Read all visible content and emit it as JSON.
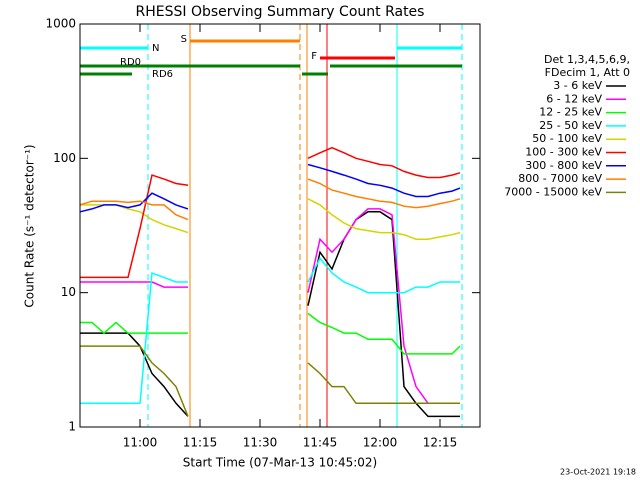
{
  "chart_data": {
    "type": "line",
    "title": "RHESSI Observing Summary Count Rates",
    "xlabel": "Start Time (07-Mar-13 10:45:02)",
    "ylabel": "Count Rate (s⁻¹ detector⁻¹)",
    "log_y": true,
    "xlim": [
      0,
      100
    ],
    "xticks": [
      {
        "value": 15,
        "label": "11:00"
      },
      {
        "value": 30,
        "label": "11:15"
      },
      {
        "value": 45,
        "label": "11:30"
      },
      {
        "value": 60,
        "label": "11:45"
      },
      {
        "value": 75,
        "label": "12:00"
      },
      {
        "value": 90,
        "label": "12:15"
      }
    ],
    "ylim": [
      1,
      1000
    ],
    "yticks": [
      1,
      10,
      100,
      1000
    ],
    "legend_header": [
      "Det 1,3,4,5,6,9,",
      "FDecim 1, Att 0"
    ],
    "legend_position": "right",
    "footer": "23-Oct-2021 19:18",
    "x": [
      0,
      3,
      6,
      9,
      12,
      15,
      18,
      21,
      24,
      27,
      42,
      57,
      60,
      63,
      66,
      69,
      72,
      75,
      78,
      81,
      84,
      87,
      90,
      93,
      95
    ],
    "series": [
      {
        "name": "3 - 6 keV",
        "color": "#000000",
        "values": [
          5,
          5,
          5,
          5,
          5,
          4,
          2.5,
          2,
          1.5,
          1.2,
          null,
          8,
          20,
          15,
          25,
          35,
          40,
          40,
          35,
          2,
          1.5,
          1.2,
          1.2,
          1.2,
          1.2
        ]
      },
      {
        "name": "6 - 12 keV",
        "color": "#ff00ff",
        "values": [
          12,
          12,
          12,
          12,
          12,
          12,
          12,
          11,
          11,
          11,
          null,
          10,
          25,
          20,
          25,
          35,
          42,
          42,
          38,
          4,
          2,
          1.5,
          1.5,
          1.5,
          1.5
        ]
      },
      {
        "name": "12 - 25 keV",
        "color": "#00ff00",
        "values": [
          6,
          6,
          5,
          6,
          5,
          5,
          5,
          5,
          5,
          5,
          null,
          7,
          6,
          5.5,
          5,
          5,
          4.5,
          4.5,
          4.5,
          3.5,
          3.5,
          3.5,
          3.5,
          3.5,
          4
        ]
      },
      {
        "name": "25 - 50 keV",
        "color": "#00ffff",
        "values": [
          1.5,
          1.5,
          1.5,
          1.5,
          1.5,
          1.5,
          14,
          13,
          12,
          12,
          null,
          12,
          18,
          14,
          12,
          11,
          10,
          10,
          10,
          10,
          11,
          11,
          12,
          12,
          12
        ]
      },
      {
        "name": "50 - 100 keV",
        "color": "#d4d400",
        "values": [
          45,
          45,
          45,
          45,
          42,
          40,
          35,
          32,
          30,
          28,
          null,
          50,
          45,
          38,
          33,
          30,
          29,
          28,
          28,
          27,
          25,
          25,
          26,
          27,
          28
        ]
      },
      {
        "name": "100 - 300 keV",
        "color": "#ff0000",
        "values": [
          13,
          13,
          13,
          13,
          13,
          30,
          75,
          70,
          65,
          63,
          null,
          100,
          110,
          120,
          110,
          100,
          95,
          90,
          88,
          80,
          75,
          72,
          72,
          75,
          78
        ]
      },
      {
        "name": "300 - 800 keV",
        "color": "#0000ff",
        "values": [
          40,
          42,
          45,
          45,
          43,
          45,
          55,
          50,
          45,
          42,
          null,
          90,
          85,
          80,
          75,
          70,
          65,
          63,
          60,
          55,
          52,
          52,
          55,
          57,
          60
        ]
      },
      {
        "name": "800 - 7000 keV",
        "color": "#ff7f00",
        "values": [
          45,
          48,
          48,
          48,
          47,
          48,
          45,
          45,
          38,
          35,
          null,
          70,
          65,
          58,
          55,
          52,
          50,
          48,
          47,
          44,
          43,
          44,
          46,
          48,
          50
        ]
      },
      {
        "name": "7000 - 15000 keV",
        "color": "#808000",
        "values": [
          4,
          4,
          4,
          4,
          4,
          4,
          3,
          2.5,
          2,
          1.2,
          null,
          3,
          2.5,
          2,
          2,
          1.5,
          1.5,
          1.5,
          1.5,
          1.5,
          1.5,
          1.5,
          1.5,
          1.5,
          1.5
        ]
      }
    ],
    "flags": [
      {
        "label": "N",
        "color": "#00ffff",
        "segments": [
          [
            0,
            17
          ],
          [
            79.25,
            95.5
          ]
        ]
      },
      {
        "label": "S",
        "color": "#ff7f00",
        "segments": [
          [
            27.5,
            55
          ]
        ]
      },
      {
        "label": "F",
        "color": "#ff0000",
        "segments": [
          [
            60,
            78.75
          ]
        ]
      },
      {
        "label": "RD0",
        "color": "#008000",
        "segments": [
          [
            0,
            55
          ],
          [
            62.5,
            95.5
          ]
        ]
      },
      {
        "label": "RD6",
        "color": "#008000",
        "segments": [
          [
            0,
            13
          ],
          [
            55.5,
            62
          ]
        ]
      }
    ],
    "vertical_lines": [
      {
        "x": 17,
        "color": "#00ffff",
        "dashed": true
      },
      {
        "x": 79.25,
        "color": "#00ffff",
        "dashed": false
      },
      {
        "x": 95.5,
        "color": "#00ffff",
        "dashed": true
      },
      {
        "x": 27.5,
        "color": "#ff7f00",
        "dashed": false
      },
      {
        "x": 55,
        "color": "#ff7f00",
        "dashed": true
      },
      {
        "x": 56.75,
        "color": "#ff7f00",
        "dashed": false
      },
      {
        "x": 61.75,
        "color": "#ff0000",
        "dashed": false
      }
    ]
  }
}
